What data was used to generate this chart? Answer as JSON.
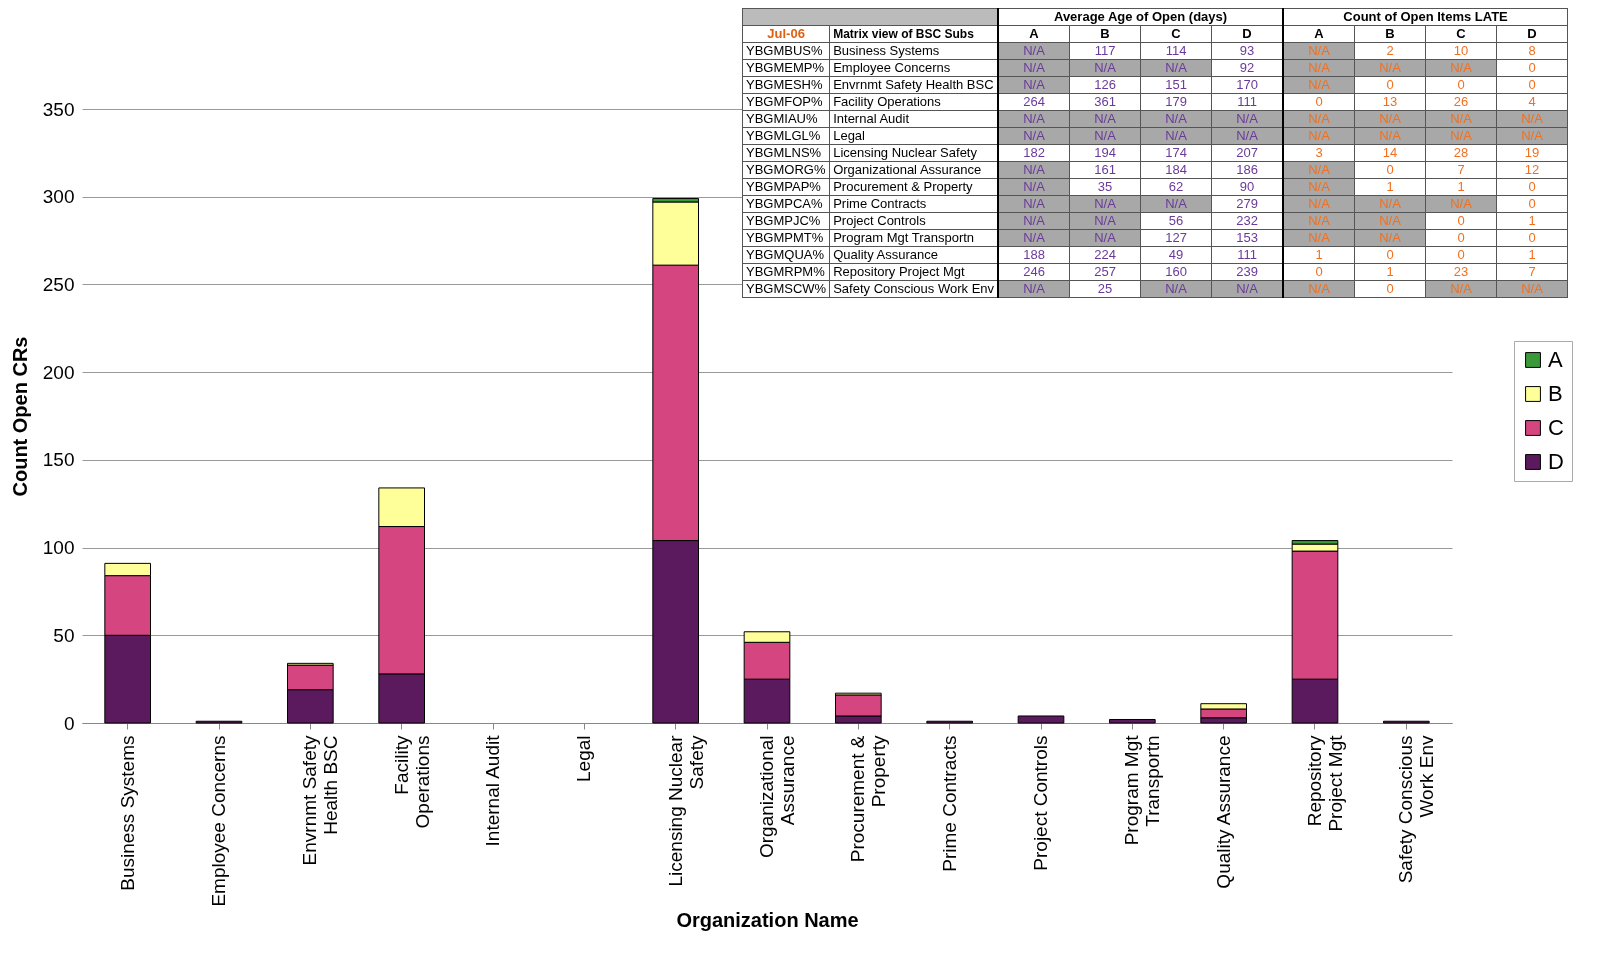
{
  "chart_data": [
    {
      "type": "bar",
      "stacked": true,
      "xlabel": "Organization Name",
      "ylabel": "Count Open CRs",
      "categories": [
        "Business Systems",
        "Employee Concerns",
        "Envrnmt Safety Health BSC",
        "Facility Operations",
        "Internal Audit",
        "Legal",
        "Licensing Nuclear Safety",
        "Organizational Assurance",
        "Procurement & Property",
        "Prime Contracts",
        "Project Controls",
        "Program Mgt Transportn",
        "Quality Assurance",
        "Repository Project Mgt",
        "Safety Conscious Work Env"
      ],
      "series": [
        {
          "name": "D",
          "color": "#5c1a5e",
          "values": [
            50,
            1,
            19,
            28,
            0,
            0,
            104,
            25,
            4,
            1,
            4,
            2,
            3,
            25,
            1
          ]
        },
        {
          "name": "C",
          "color": "#d5457f",
          "values": [
            34,
            0,
            14,
            84,
            0,
            0,
            157,
            21,
            12,
            0,
            0,
            0,
            5,
            73,
            0
          ]
        },
        {
          "name": "B",
          "color": "#ffff99",
          "values": [
            7,
            0,
            1,
            22,
            0,
            0,
            36,
            6,
            1,
            0,
            0,
            0,
            3,
            4,
            0
          ]
        },
        {
          "name": "A",
          "color": "#3a9a3a",
          "values": [
            0,
            0,
            0,
            0,
            0,
            0,
            2,
            0,
            0,
            0,
            0,
            0,
            0,
            2,
            0
          ]
        }
      ],
      "ylim": [
        0,
        350
      ],
      "yticks": [
        0,
        50,
        100,
        150,
        200,
        250,
        300,
        350
      ],
      "grid": "y",
      "legend": "right"
    },
    {
      "type": "other",
      "title": "Matrix view of BSC Subs",
      "subtitle": "Jul-06",
      "annotations": [
        "Average Age of Open (days)",
        "Count of Open Items LATE"
      ],
      "categories": [
        "A",
        "B",
        "C",
        "D",
        "A",
        "B",
        "C",
        "D"
      ],
      "y_categories": [
        "YBGMBUS%",
        "YBGMEMP%",
        "YBGMESH%",
        "YBGMFOP%",
        "YBGMIAU%",
        "YBGMLGL%",
        "YBGMLNS%",
        "YBGMORG%",
        "YBGMPAP%",
        "YBGMPCA%",
        "YBGMPJC%",
        "YBGMPMT%",
        "YBGMQUA%",
        "YBGMRPM%",
        "YBGMSCW%"
      ],
      "y2_categories": [
        "Business Systems",
        "Employee Concerns",
        "Envrnmt Safety Health BSC",
        "Facility Operations",
        "Internal Audit",
        "Legal",
        "Licensing Nuclear Safety",
        "Organizational Assurance",
        "Procurement & Property",
        "Prime Contracts",
        "Project Controls",
        "Program Mgt Transportn",
        "Quality Assurance",
        "Repository Project Mgt",
        "Safety Conscious Work Env"
      ],
      "cell_labels": [
        [
          "N/A",
          "117",
          "114",
          "93",
          "N/A",
          "2",
          "10",
          "8"
        ],
        [
          "N/A",
          "N/A",
          "N/A",
          "92",
          "N/A",
          "N/A",
          "N/A",
          "0"
        ],
        [
          "N/A",
          "126",
          "151",
          "170",
          "N/A",
          "0",
          "0",
          "0"
        ],
        [
          "264",
          "361",
          "179",
          "111",
          "0",
          "13",
          "26",
          "4"
        ],
        [
          "N/A",
          "N/A",
          "N/A",
          "N/A",
          "N/A",
          "N/A",
          "N/A",
          "N/A"
        ],
        [
          "N/A",
          "N/A",
          "N/A",
          "N/A",
          "N/A",
          "N/A",
          "N/A",
          "N/A"
        ],
        [
          "182",
          "194",
          "174",
          "207",
          "3",
          "14",
          "28",
          "19"
        ],
        [
          "N/A",
          "161",
          "184",
          "186",
          "N/A",
          "0",
          "7",
          "12"
        ],
        [
          "N/A",
          "35",
          "62",
          "90",
          "N/A",
          "1",
          "1",
          "0"
        ],
        [
          "N/A",
          "N/A",
          "N/A",
          "279",
          "N/A",
          "N/A",
          "N/A",
          "0"
        ],
        [
          "N/A",
          "N/A",
          "56",
          "232",
          "N/A",
          "N/A",
          "0",
          "1"
        ],
        [
          "N/A",
          "N/A",
          "127",
          "153",
          "N/A",
          "N/A",
          "0",
          "0"
        ],
        [
          "188",
          "224",
          "49",
          "111",
          "1",
          "0",
          "0",
          "1"
        ],
        [
          "246",
          "257",
          "160",
          "239",
          "0",
          "1",
          "23",
          "7"
        ],
        [
          "N/A",
          "25",
          "N/A",
          "N/A",
          "N/A",
          "0",
          "N/A",
          "N/A"
        ]
      ]
    }
  ]
}
